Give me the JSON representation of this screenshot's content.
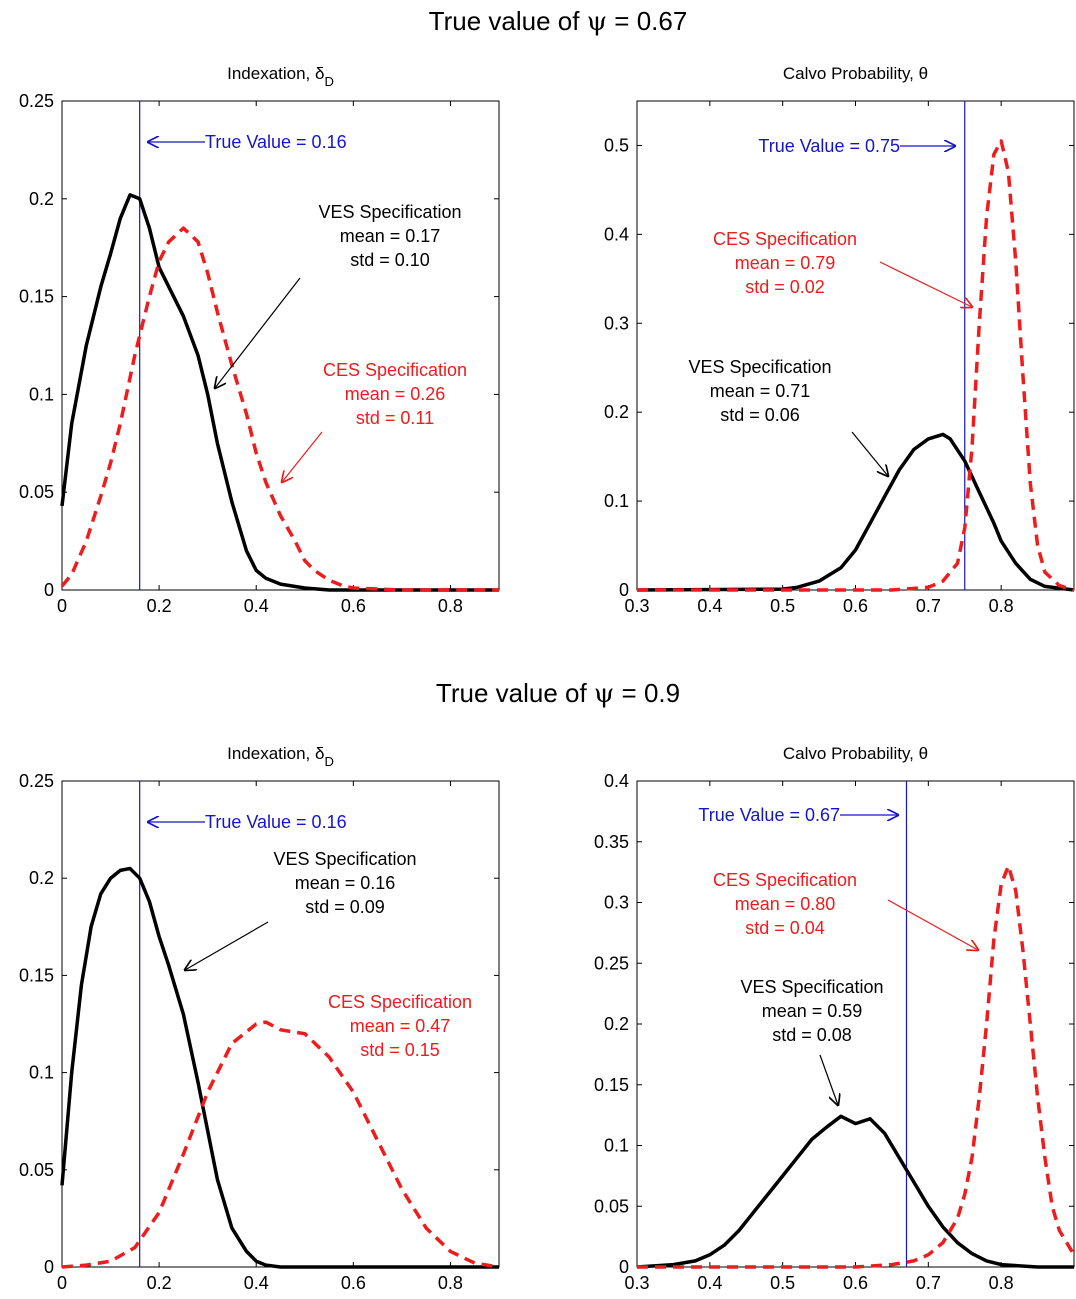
{
  "figure": {
    "row_titles": [
      {
        "prefix": "True value of ",
        "symbol": "ψ",
        "suffix": " = 0.67"
      },
      {
        "prefix": "True value of ",
        "symbol": "ψ",
        "suffix": " = 0.9"
      }
    ]
  },
  "colors": {
    "ves": "#000000",
    "ces": "#ee1c1c",
    "true_value": "#1515c8",
    "axis": "#000000"
  },
  "chart_data": [
    {
      "type": "line",
      "title": {
        "text": "Indexation, δ",
        "sub": "D"
      },
      "xlim": [
        0,
        0.9
      ],
      "ylim": [
        0,
        0.25
      ],
      "xticks": [
        0,
        0.2,
        0.4,
        0.6,
        0.8
      ],
      "xtick_labels": [
        "0",
        "0.2",
        "0.4",
        "0.6",
        "0.8"
      ],
      "yticks": [
        0,
        0.05,
        0.1,
        0.15,
        0.2,
        0.25
      ],
      "ytick_labels": [
        "0",
        "0.05",
        "0.1",
        "0.15",
        "0.2",
        "0.25"
      ],
      "true_value": 0.16,
      "true_label": "True Value = 0.16",
      "series": [
        {
          "key": "ves",
          "style": "solid",
          "x": [
            0,
            0.02,
            0.05,
            0.08,
            0.1,
            0.12,
            0.14,
            0.16,
            0.18,
            0.2,
            0.22,
            0.25,
            0.28,
            0.3,
            0.32,
            0.35,
            0.38,
            0.4,
            0.42,
            0.45,
            0.5,
            0.55,
            0.6,
            0.7,
            0.8,
            0.9
          ],
          "y": [
            0.043,
            0.085,
            0.125,
            0.155,
            0.172,
            0.19,
            0.202,
            0.2,
            0.185,
            0.165,
            0.155,
            0.14,
            0.12,
            0.1,
            0.075,
            0.045,
            0.02,
            0.01,
            0.006,
            0.003,
            0.001,
            0,
            0,
            0,
            0,
            0
          ]
        },
        {
          "key": "ces",
          "style": "dashed",
          "x": [
            0,
            0.02,
            0.05,
            0.08,
            0.1,
            0.12,
            0.15,
            0.18,
            0.2,
            0.22,
            0.25,
            0.28,
            0.3,
            0.32,
            0.35,
            0.38,
            0.4,
            0.42,
            0.45,
            0.48,
            0.5,
            0.52,
            0.55,
            0.58,
            0.6,
            0.65,
            0.7,
            0.8,
            0.9
          ],
          "y": [
            0.002,
            0.008,
            0.025,
            0.048,
            0.065,
            0.085,
            0.12,
            0.15,
            0.168,
            0.178,
            0.185,
            0.178,
            0.162,
            0.142,
            0.115,
            0.09,
            0.07,
            0.055,
            0.038,
            0.025,
            0.015,
            0.01,
            0.005,
            0.002,
            0.001,
            0.0005,
            0,
            0,
            0
          ]
        }
      ],
      "annotations": [
        {
          "key": "ves",
          "lines": [
            "VES Specification",
            "mean = 0.17",
            "std = 0.10"
          ]
        },
        {
          "key": "ces",
          "lines": [
            "CES Specification",
            "mean = 0.26",
            "std = 0.11"
          ]
        }
      ]
    },
    {
      "type": "line",
      "title": {
        "text": "Calvo Probability, θ",
        "sub": ""
      },
      "xlim": [
        0.3,
        0.9
      ],
      "ylim": [
        0,
        0.55
      ],
      "xticks": [
        0.3,
        0.4,
        0.5,
        0.6,
        0.7,
        0.8
      ],
      "xtick_labels": [
        "0.3",
        "0.4",
        "0.5",
        "0.6",
        "0.7",
        "0.8"
      ],
      "yticks": [
        0,
        0.1,
        0.2,
        0.3,
        0.4,
        0.5
      ],
      "ytick_labels": [
        "0",
        "0.1",
        "0.2",
        "0.3",
        "0.4",
        "0.5"
      ],
      "true_value": 0.75,
      "true_label": "True Value = 0.75",
      "series": [
        {
          "key": "ves",
          "style": "solid",
          "x": [
            0.3,
            0.5,
            0.52,
            0.55,
            0.58,
            0.6,
            0.62,
            0.64,
            0.66,
            0.68,
            0.7,
            0.72,
            0.73,
            0.75,
            0.77,
            0.79,
            0.8,
            0.82,
            0.84,
            0.86,
            0.9
          ],
          "y": [
            0,
            0.001,
            0.003,
            0.01,
            0.025,
            0.045,
            0.075,
            0.105,
            0.135,
            0.158,
            0.17,
            0.175,
            0.17,
            0.145,
            0.11,
            0.075,
            0.055,
            0.03,
            0.012,
            0.004,
            0
          ]
        },
        {
          "key": "ces",
          "style": "dashed",
          "x": [
            0.3,
            0.65,
            0.7,
            0.72,
            0.74,
            0.75,
            0.76,
            0.77,
            0.78,
            0.79,
            0.8,
            0.81,
            0.82,
            0.83,
            0.84,
            0.85,
            0.86,
            0.88,
            0.9
          ],
          "y": [
            0,
            0,
            0.003,
            0.01,
            0.03,
            0.07,
            0.16,
            0.3,
            0.42,
            0.49,
            0.505,
            0.47,
            0.37,
            0.24,
            0.12,
            0.05,
            0.02,
            0.005,
            0
          ]
        }
      ],
      "annotations": [
        {
          "key": "ces",
          "lines": [
            "CES Specification",
            "mean = 0.79",
            "std = 0.02"
          ]
        },
        {
          "key": "ves",
          "lines": [
            "VES Specification",
            "mean = 0.71",
            "std = 0.06"
          ]
        }
      ]
    },
    {
      "type": "line",
      "title": {
        "text": "Indexation, δ",
        "sub": "D"
      },
      "xlim": [
        0,
        0.9
      ],
      "ylim": [
        0,
        0.25
      ],
      "xticks": [
        0,
        0.2,
        0.4,
        0.6,
        0.8
      ],
      "xtick_labels": [
        "0",
        "0.2",
        "0.4",
        "0.6",
        "0.8"
      ],
      "yticks": [
        0,
        0.05,
        0.1,
        0.15,
        0.2,
        0.25
      ],
      "ytick_labels": [
        "0",
        "0.05",
        "0.1",
        "0.15",
        "0.2",
        "0.25"
      ],
      "true_value": 0.16,
      "true_label": "True Value = 0.16",
      "series": [
        {
          "key": "ves",
          "style": "solid",
          "x": [
            0,
            0.02,
            0.04,
            0.06,
            0.08,
            0.1,
            0.12,
            0.14,
            0.16,
            0.18,
            0.2,
            0.22,
            0.25,
            0.28,
            0.3,
            0.32,
            0.35,
            0.38,
            0.4,
            0.42,
            0.45,
            0.5,
            0.6,
            0.9
          ],
          "y": [
            0.042,
            0.1,
            0.145,
            0.175,
            0.192,
            0.2,
            0.204,
            0.205,
            0.2,
            0.188,
            0.17,
            0.155,
            0.13,
            0.095,
            0.07,
            0.045,
            0.02,
            0.008,
            0.003,
            0.001,
            0,
            0,
            0,
            0
          ]
        },
        {
          "key": "ces",
          "style": "dashed",
          "x": [
            0,
            0.05,
            0.1,
            0.15,
            0.2,
            0.25,
            0.3,
            0.35,
            0.4,
            0.42,
            0.45,
            0.5,
            0.55,
            0.6,
            0.65,
            0.7,
            0.75,
            0.8,
            0.85,
            0.9
          ],
          "y": [
            0,
            0.001,
            0.003,
            0.01,
            0.028,
            0.058,
            0.09,
            0.115,
            0.125,
            0.126,
            0.122,
            0.12,
            0.108,
            0.09,
            0.065,
            0.04,
            0.02,
            0.008,
            0.002,
            0
          ]
        }
      ],
      "annotations": [
        {
          "key": "ves",
          "lines": [
            "VES Specification",
            "mean = 0.16",
            "std = 0.09"
          ]
        },
        {
          "key": "ces",
          "lines": [
            "CES Specification",
            "mean = 0.47",
            "std = 0.15"
          ]
        }
      ]
    },
    {
      "type": "line",
      "title": {
        "text": "Calvo Probability, θ",
        "sub": ""
      },
      "xlim": [
        0.3,
        0.9
      ],
      "ylim": [
        0,
        0.4
      ],
      "xticks": [
        0.3,
        0.4,
        0.5,
        0.6,
        0.7,
        0.8
      ],
      "xtick_labels": [
        "0.3",
        "0.4",
        "0.5",
        "0.6",
        "0.7",
        "0.8"
      ],
      "yticks": [
        0,
        0.05,
        0.1,
        0.15,
        0.2,
        0.25,
        0.3,
        0.35,
        0.4
      ],
      "ytick_labels": [
        "0",
        "0.05",
        "0.1",
        "0.15",
        "0.2",
        "0.25",
        "0.3",
        "0.35",
        "0.4"
      ],
      "true_value": 0.67,
      "true_label": "True Value = 0.67",
      "series": [
        {
          "key": "ves",
          "style": "solid",
          "x": [
            0.3,
            0.35,
            0.38,
            0.4,
            0.42,
            0.44,
            0.46,
            0.48,
            0.5,
            0.52,
            0.54,
            0.56,
            0.58,
            0.6,
            0.62,
            0.64,
            0.66,
            0.68,
            0.7,
            0.72,
            0.74,
            0.76,
            0.78,
            0.8,
            0.85,
            0.9
          ],
          "y": [
            0,
            0.002,
            0.005,
            0.01,
            0.018,
            0.03,
            0.045,
            0.06,
            0.075,
            0.09,
            0.105,
            0.115,
            0.124,
            0.118,
            0.122,
            0.11,
            0.09,
            0.07,
            0.05,
            0.033,
            0.02,
            0.011,
            0.005,
            0.002,
            0,
            0
          ]
        },
        {
          "key": "ces",
          "style": "dashed",
          "x": [
            0.3,
            0.6,
            0.65,
            0.68,
            0.7,
            0.72,
            0.74,
            0.75,
            0.76,
            0.77,
            0.78,
            0.79,
            0.8,
            0.81,
            0.82,
            0.83,
            0.84,
            0.85,
            0.86,
            0.87,
            0.88,
            0.9
          ],
          "y": [
            0,
            0,
            0.002,
            0.005,
            0.01,
            0.02,
            0.04,
            0.06,
            0.09,
            0.14,
            0.2,
            0.27,
            0.315,
            0.33,
            0.31,
            0.26,
            0.2,
            0.14,
            0.09,
            0.05,
            0.03,
            0.01
          ]
        }
      ],
      "annotations": [
        {
          "key": "ces",
          "lines": [
            "CES Specification",
            "mean = 0.80",
            "std = 0.04"
          ]
        },
        {
          "key": "ves",
          "lines": [
            "VES Specification",
            "mean = 0.59",
            "std = 0.08"
          ]
        }
      ]
    }
  ]
}
